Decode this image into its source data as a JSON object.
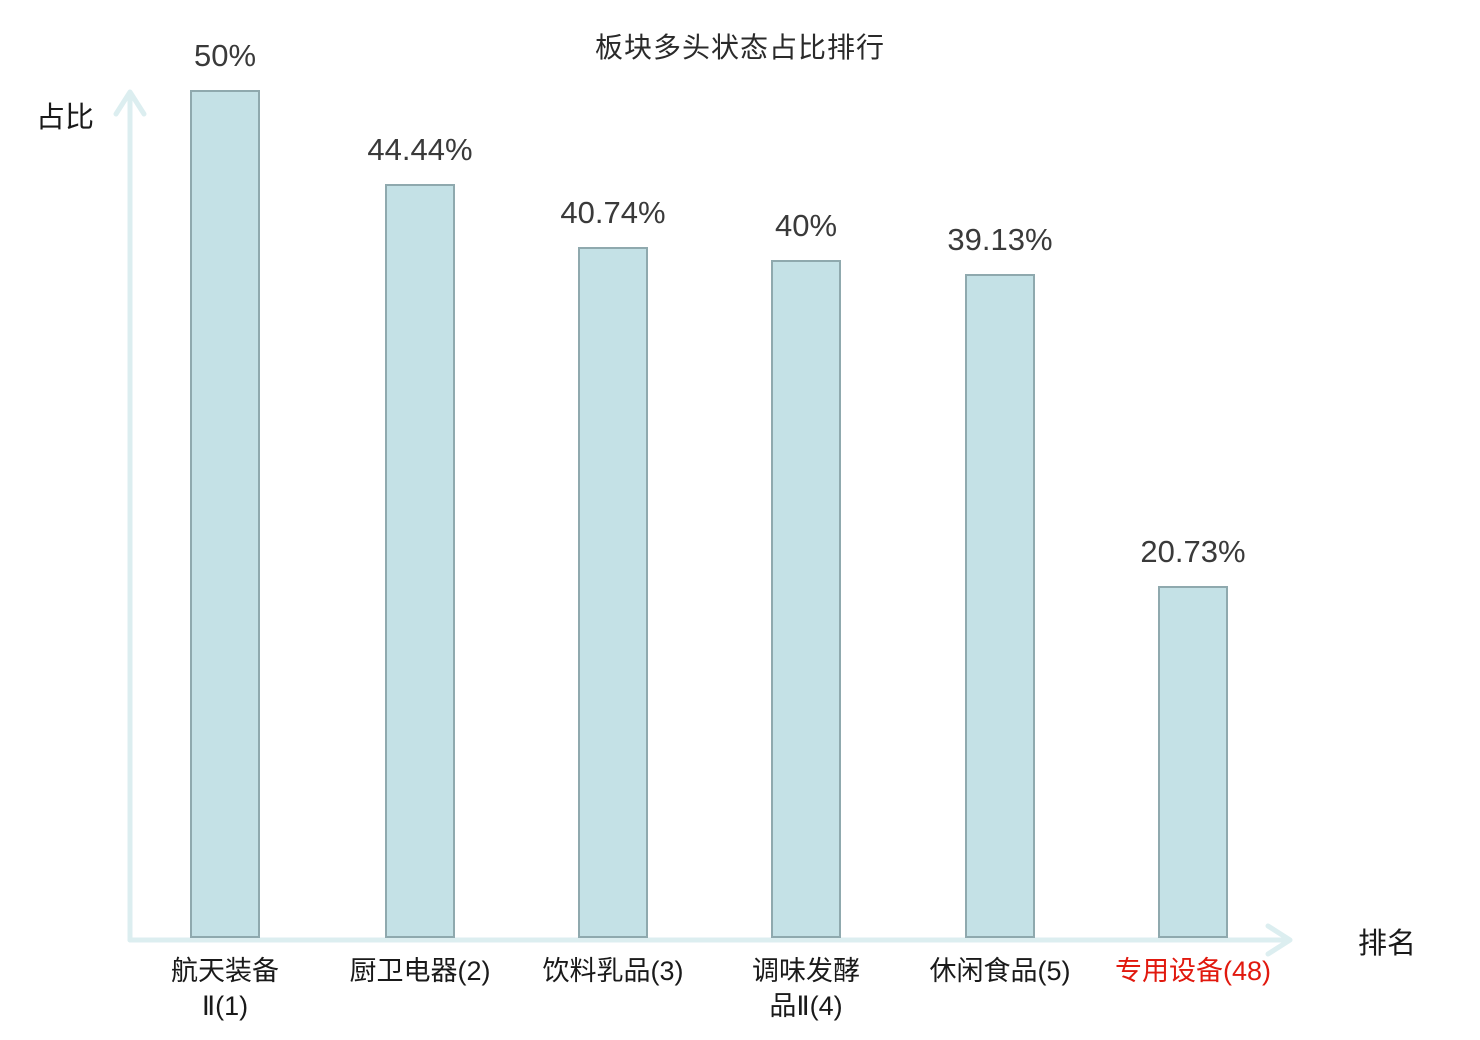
{
  "chart_data": {
    "type": "bar",
    "title": "板块多头状态占比排行",
    "xlabel": "排名",
    "ylabel": "占比",
    "categories": [
      "航天装备\nⅡ(1)",
      "厨卫电器(2)",
      "饮料乳品(3)",
      "调味发酵\n品Ⅱ(4)",
      "休闲食品(5)",
      "专用设备(48)"
    ],
    "values": [
      50,
      44.44,
      40.74,
      40,
      39.13,
      20.73
    ],
    "value_labels": [
      "50%",
      "44.44%",
      "40.74%",
      "40%",
      "39.13%",
      "20.73%"
    ],
    "highlight_index": 5,
    "ylim": [
      0,
      50
    ],
    "grid": false,
    "legend": false,
    "colors": {
      "bar_fill": "#c4e1e6",
      "bar_border": "#8fa9ae",
      "axis": "#dceef0",
      "value_text": "#3a3a3a",
      "category_text": "#1a1a1a",
      "highlight_text": "#e1190e"
    }
  }
}
